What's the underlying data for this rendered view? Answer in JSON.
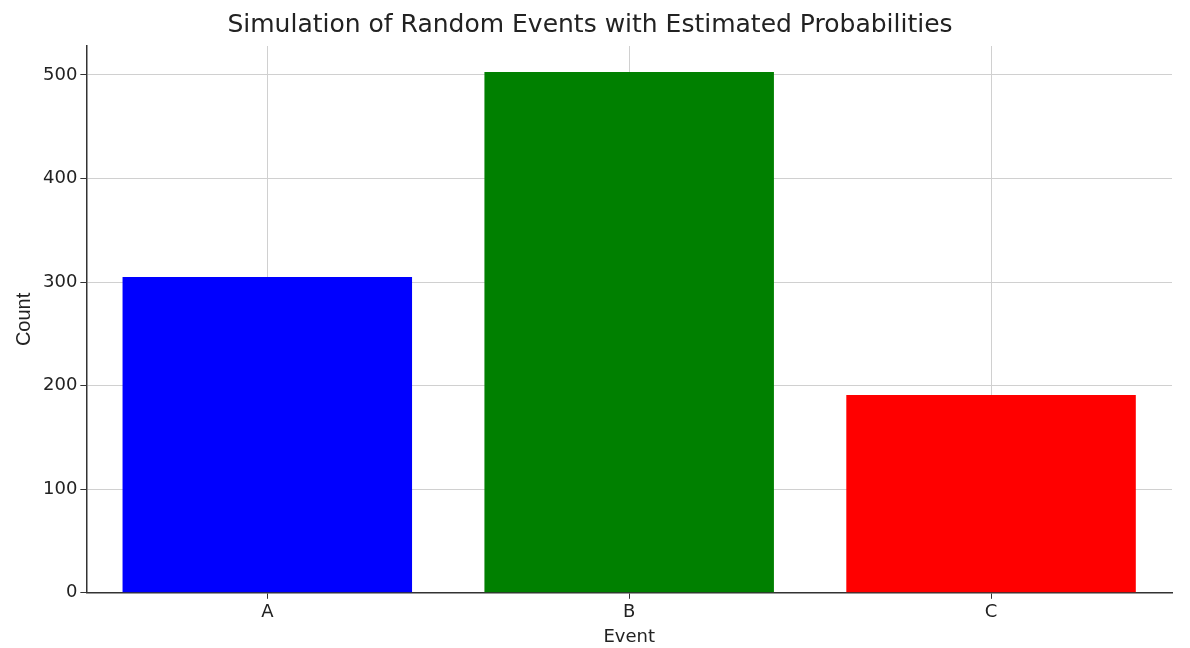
{
  "chart_data": {
    "type": "bar",
    "title": "Simulation of Random Events with Estimated Probabilities",
    "xlabel": "Event",
    "ylabel": "Count",
    "categories": [
      "A",
      "B",
      "C"
    ],
    "values": [
      305,
      503,
      191
    ],
    "colors": [
      "#0000ff",
      "#008000",
      "#ff0000"
    ],
    "ylim": [
      0,
      528
    ],
    "yticks": [
      0,
      100,
      200,
      300,
      400,
      500
    ],
    "grid": true
  }
}
